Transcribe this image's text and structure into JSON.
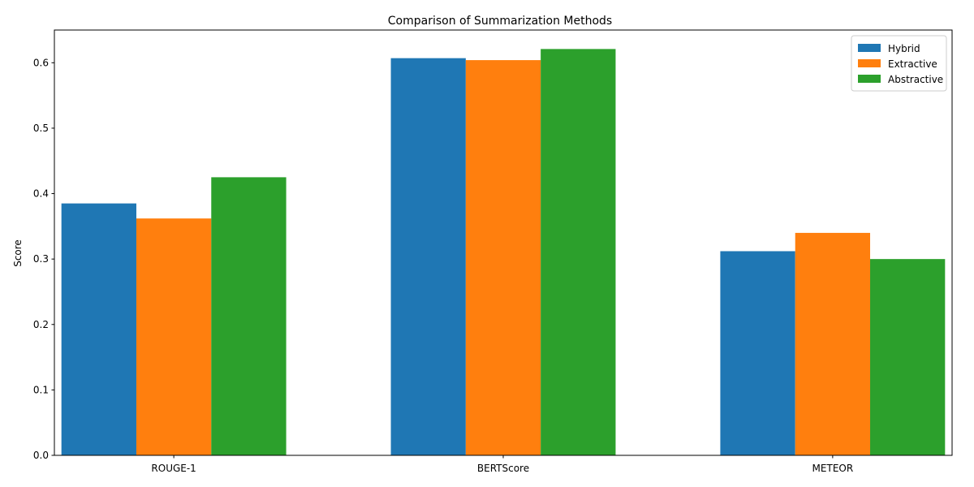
{
  "chart_data": {
    "type": "bar",
    "title": "Comparison of Summarization Methods",
    "xlabel": "",
    "ylabel": "Score",
    "categories": [
      "ROUGE-1",
      "BERTScore",
      "METEOR"
    ],
    "series": [
      {
        "name": "Hybrid",
        "color": "#1f77b4",
        "values": [
          0.385,
          0.607,
          0.312
        ]
      },
      {
        "name": "Extractive",
        "color": "#ff7f0e",
        "values": [
          0.362,
          0.604,
          0.34
        ]
      },
      {
        "name": "Abstractive",
        "color": "#2ca02c",
        "values": [
          0.425,
          0.621,
          0.3
        ]
      }
    ],
    "ylim": [
      0,
      0.65
    ],
    "yticks": [
      "0.0",
      "0.1",
      "0.2",
      "0.3",
      "0.4",
      "0.5",
      "0.6"
    ],
    "grid": false,
    "legend_position": "top-right"
  }
}
